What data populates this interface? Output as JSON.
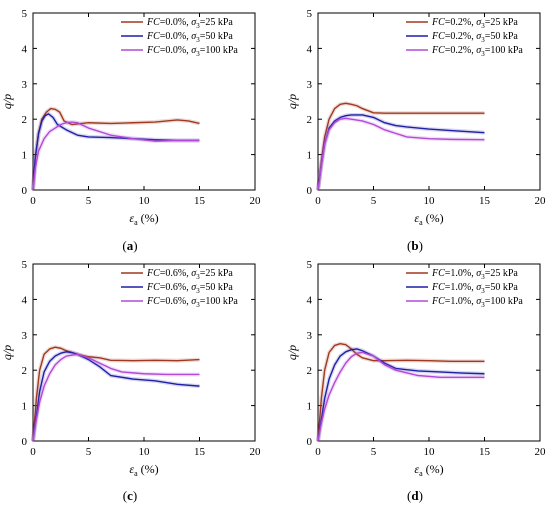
{
  "chart_data": [
    {
      "type": "line",
      "panel_label": "(a)",
      "xlabel": "εa (%)",
      "ylabel": "q/p",
      "xlim": [
        0,
        20
      ],
      "ylim": [
        0,
        5
      ],
      "xticks": [
        "0",
        "5",
        "10",
        "15",
        "20"
      ],
      "yticks": [
        "0",
        "1",
        "2",
        "3",
        "4",
        "5"
      ],
      "legend_position": "top-right",
      "series": [
        {
          "name": "FC=0.0%, σ3=25 kPa",
          "color": "#a0391f",
          "x": [
            0,
            0.2,
            0.5,
            0.8,
            1.2,
            1.6,
            2.0,
            2.4,
            2.8,
            3.5,
            5,
            7,
            9,
            11,
            13,
            14,
            15
          ],
          "y": [
            0,
            0.9,
            1.6,
            2.0,
            2.2,
            2.3,
            2.28,
            2.2,
            1.95,
            1.85,
            1.9,
            1.88,
            1.9,
            1.92,
            1.98,
            1.95,
            1.88
          ]
        },
        {
          "name": "FC=0.0%, σ3=50 kPa",
          "color": "#1f1fa8",
          "x": [
            0,
            0.2,
            0.5,
            0.8,
            1.1,
            1.4,
            1.8,
            2.2,
            3,
            4,
            5,
            7,
            9,
            11,
            13,
            15
          ],
          "y": [
            0,
            0.9,
            1.6,
            1.95,
            2.1,
            2.15,
            2.05,
            1.85,
            1.7,
            1.55,
            1.5,
            1.48,
            1.45,
            1.42,
            1.4,
            1.4
          ]
        },
        {
          "name": "FC=0.0%, σ3=100 kPa",
          "color": "#b24ad8",
          "x": [
            0,
            0.2,
            0.5,
            1,
            1.5,
            2,
            2.5,
            3,
            3.5,
            4,
            5,
            7,
            9,
            11,
            13,
            15
          ],
          "y": [
            0,
            0.6,
            1.1,
            1.45,
            1.65,
            1.75,
            1.85,
            1.9,
            1.92,
            1.9,
            1.75,
            1.55,
            1.45,
            1.38,
            1.4,
            1.4
          ]
        }
      ]
    },
    {
      "type": "line",
      "panel_label": "(b)",
      "xlabel": "εa (%)",
      "ylabel": "q/p",
      "xlim": [
        0,
        20
      ],
      "ylim": [
        0,
        5
      ],
      "xticks": [
        "0",
        "5",
        "10",
        "15",
        "20"
      ],
      "yticks": [
        "0",
        "1",
        "2",
        "3",
        "4",
        "5"
      ],
      "legend_position": "top-right",
      "series": [
        {
          "name": "FC=0.2%, σ3=25 kPa",
          "color": "#a0391f",
          "x": [
            0,
            0.3,
            0.6,
            1,
            1.5,
            2,
            2.5,
            3,
            3.5,
            4,
            5,
            6,
            8,
            10,
            12,
            15
          ],
          "y": [
            0,
            0.8,
            1.5,
            2.0,
            2.3,
            2.42,
            2.45,
            2.42,
            2.38,
            2.3,
            2.18,
            2.17,
            2.17,
            2.17,
            2.17,
            2.17
          ]
        },
        {
          "name": "FC=0.2%, σ3=50 kPa",
          "color": "#1f1fa8",
          "x": [
            0,
            0.3,
            0.6,
            1,
            1.5,
            2,
            2.5,
            3,
            4,
            5,
            6,
            7,
            8,
            10,
            12,
            15
          ],
          "y": [
            0,
            0.7,
            1.3,
            1.75,
            1.95,
            2.05,
            2.1,
            2.12,
            2.12,
            2.05,
            1.9,
            1.82,
            1.78,
            1.72,
            1.68,
            1.62
          ]
        },
        {
          "name": "FC=0.2%, σ3=100 kPa",
          "color": "#b24ad8",
          "x": [
            0,
            0.3,
            0.6,
            1,
            1.5,
            2,
            2.5,
            3,
            4,
            5,
            6,
            7,
            8,
            10,
            12,
            15
          ],
          "y": [
            0,
            0.7,
            1.3,
            1.7,
            1.9,
            2.0,
            2.02,
            2.0,
            1.95,
            1.85,
            1.7,
            1.6,
            1.5,
            1.45,
            1.43,
            1.42
          ]
        }
      ]
    },
    {
      "type": "line",
      "panel_label": "(c)",
      "xlabel": "εa (%)",
      "ylabel": "q/p",
      "xlim": [
        0,
        20
      ],
      "ylim": [
        0,
        5
      ],
      "xticks": [
        "0",
        "5",
        "10",
        "15",
        "20"
      ],
      "yticks": [
        "0",
        "1",
        "2",
        "3",
        "4",
        "5"
      ],
      "legend_position": "top-right",
      "series": [
        {
          "name": "FC=0.6%, σ3=25 kPa",
          "color": "#a0391f",
          "x": [
            0,
            0.3,
            0.6,
            1,
            1.5,
            2,
            2.5,
            3,
            4,
            5,
            6,
            7,
            9,
            11,
            13,
            15
          ],
          "y": [
            0,
            1.2,
            2.0,
            2.45,
            2.6,
            2.65,
            2.62,
            2.55,
            2.45,
            2.38,
            2.35,
            2.28,
            2.27,
            2.28,
            2.27,
            2.3
          ]
        },
        {
          "name": "FC=0.6%, σ3=50 kPa",
          "color": "#1f1fa8",
          "x": [
            0,
            0.3,
            0.6,
            1,
            1.5,
            2,
            2.5,
            3,
            3.5,
            4,
            5,
            6,
            7,
            9,
            11,
            13,
            15
          ],
          "y": [
            0,
            0.7,
            1.4,
            1.95,
            2.25,
            2.4,
            2.48,
            2.52,
            2.5,
            2.45,
            2.3,
            2.1,
            1.85,
            1.75,
            1.7,
            1.6,
            1.55
          ]
        },
        {
          "name": "FC=0.6%, σ3=100 kPa",
          "color": "#b24ad8",
          "x": [
            0,
            0.3,
            0.6,
            1,
            1.5,
            2,
            2.5,
            3,
            4,
            5,
            6,
            7,
            8,
            10,
            12,
            15
          ],
          "y": [
            0,
            0.6,
            1.1,
            1.55,
            1.9,
            2.15,
            2.3,
            2.4,
            2.45,
            2.35,
            2.2,
            2.05,
            1.95,
            1.9,
            1.88,
            1.88
          ]
        }
      ]
    },
    {
      "type": "line",
      "panel_label": "(d)",
      "xlabel": "εa (%)",
      "ylabel": "q/p",
      "xlim": [
        0,
        20
      ],
      "ylim": [
        0,
        5
      ],
      "xticks": [
        "0",
        "5",
        "10",
        "15",
        "20"
      ],
      "yticks": [
        "0",
        "1",
        "2",
        "3",
        "4",
        "5"
      ],
      "legend_position": "top-right",
      "series": [
        {
          "name": "FC=1.0%, σ3=25 kPa",
          "color": "#a0391f",
          "x": [
            0,
            0.3,
            0.6,
            1,
            1.5,
            2,
            2.5,
            3,
            3.5,
            4,
            5,
            6,
            8,
            10,
            12,
            15
          ],
          "y": [
            0,
            1.2,
            2.0,
            2.5,
            2.7,
            2.75,
            2.72,
            2.6,
            2.45,
            2.35,
            2.27,
            2.27,
            2.28,
            2.27,
            2.25,
            2.25
          ]
        },
        {
          "name": "FC=1.0%, σ3=50 kPa",
          "color": "#1f1fa8",
          "x": [
            0,
            0.3,
            0.6,
            1,
            1.5,
            2,
            2.5,
            3,
            3.5,
            4,
            5,
            6,
            7,
            9,
            11,
            13,
            15
          ],
          "y": [
            0,
            0.6,
            1.2,
            1.75,
            2.15,
            2.4,
            2.52,
            2.58,
            2.6,
            2.55,
            2.4,
            2.2,
            2.05,
            1.98,
            1.95,
            1.92,
            1.9
          ]
        },
        {
          "name": "FC=1.0%, σ3=100 kPa",
          "color": "#b24ad8",
          "x": [
            0,
            0.3,
            0.6,
            1,
            1.5,
            2,
            2.5,
            3,
            3.5,
            4,
            5,
            6,
            7,
            9,
            11,
            13,
            15
          ],
          "y": [
            0,
            0.5,
            0.9,
            1.3,
            1.65,
            1.95,
            2.2,
            2.38,
            2.48,
            2.5,
            2.4,
            2.15,
            2.0,
            1.85,
            1.8,
            1.8,
            1.8
          ]
        }
      ]
    }
  ]
}
